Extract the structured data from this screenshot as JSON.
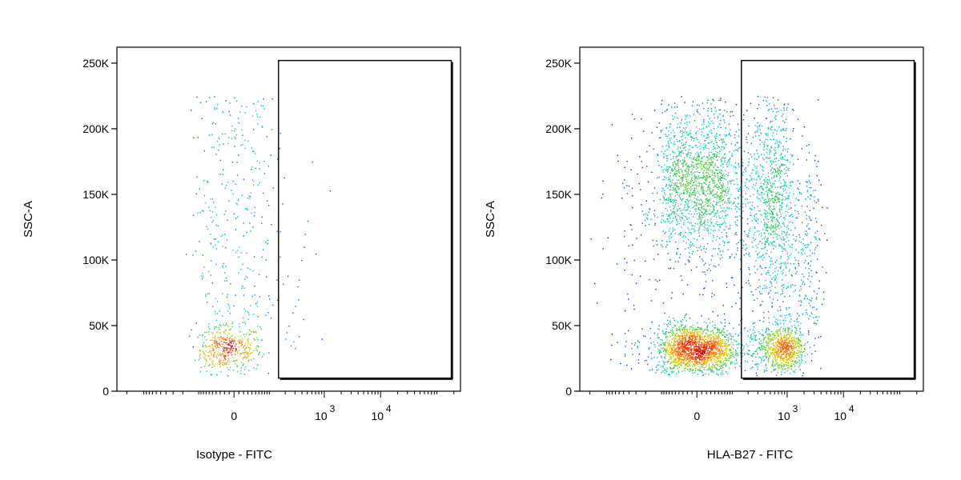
{
  "chart_data": [
    {
      "type": "scatter",
      "xlabel": "Isotype - FITC",
      "ylabel": "SSC-A",
      "x_scale": "biexponential",
      "ylim": [
        0,
        262144
      ],
      "y_ticks": [
        0,
        50000,
        100000,
        150000,
        200000,
        250000
      ],
      "y_tick_labels": [
        "0",
        "50K",
        "100K",
        "150K",
        "200K",
        "250K"
      ],
      "x_ticks": [
        0,
        1000,
        10000
      ],
      "x_tick_labels": [
        {
          "base": "0",
          "sup": ""
        },
        {
          "base": "10",
          "sup": "3"
        },
        {
          "base": "10",
          "sup": "4"
        }
      ],
      "gate": {
        "x_range": [
          150,
          180000
        ],
        "y_range": [
          10000,
          252000
        ]
      },
      "populations": [
        {
          "x_center": -15,
          "x_spread": 40,
          "y_center": 32000,
          "y_spread": 9000,
          "count": 420
        },
        {
          "x_center": -5,
          "x_spread": 60,
          "y_min": 45000,
          "y_max": 225000,
          "count": 320
        }
      ],
      "points": [
        [
          600,
          175000
        ],
        [
          1250,
          153000
        ],
        [
          160,
          197000
        ],
        [
          190,
          163000
        ],
        [
          175,
          143000
        ],
        [
          500,
          130000
        ],
        [
          450,
          120000
        ],
        [
          430,
          110000
        ],
        [
          390,
          100000
        ],
        [
          700,
          105000
        ],
        [
          350,
          85000
        ],
        [
          330,
          80000
        ],
        [
          340,
          70000
        ],
        [
          300,
          65000
        ],
        [
          270,
          60000
        ],
        [
          230,
          50000
        ],
        [
          210,
          45000
        ],
        [
          200,
          40000
        ],
        [
          250,
          35000
        ],
        [
          300,
          33000
        ],
        [
          280,
          38000
        ],
        [
          350,
          42000
        ],
        [
          420,
          55000
        ],
        [
          900,
          40000
        ],
        [
          220,
          88000
        ],
        [
          160,
          122000
        ],
        [
          180,
          82000
        ]
      ]
    },
    {
      "type": "scatter",
      "xlabel": "HLA-B27 - FITC",
      "ylabel": "SSC-A",
      "x_scale": "biexponential",
      "ylim": [
        0,
        262144
      ],
      "y_ticks": [
        0,
        50000,
        100000,
        150000,
        200000,
        250000
      ],
      "y_tick_labels": [
        "0",
        "50K",
        "100K",
        "150K",
        "200K",
        "250K"
      ],
      "x_ticks": [
        0,
        1000,
        10000
      ],
      "x_tick_labels": [
        {
          "base": "0",
          "sup": ""
        },
        {
          "base": "10",
          "sup": "3"
        },
        {
          "base": "10",
          "sup": "4"
        }
      ],
      "gate": {
        "x_range": [
          150,
          180000
        ],
        "y_range": [
          10000,
          252000
        ]
      },
      "populations": [
        {
          "x_center": -5,
          "x_spread": 45,
          "y_center": 32000,
          "y_spread": 10000,
          "count": 1600
        },
        {
          "x_center": 0,
          "x_spread": 50,
          "y_center": 160000,
          "y_spread": 28000,
          "count": 1400
        },
        {
          "x_center": 400,
          "x_spread": 350,
          "y_center": 145000,
          "y_spread": 40000,
          "count": 1200
        },
        {
          "x_center": 700,
          "x_spread": 500,
          "y_center": 33000,
          "y_spread": 9000,
          "count": 900
        },
        {
          "x_center": 1700,
          "x_spread": 1200,
          "y_center": 100000,
          "y_spread": 45000,
          "count": 380
        }
      ],
      "points": []
    }
  ]
}
